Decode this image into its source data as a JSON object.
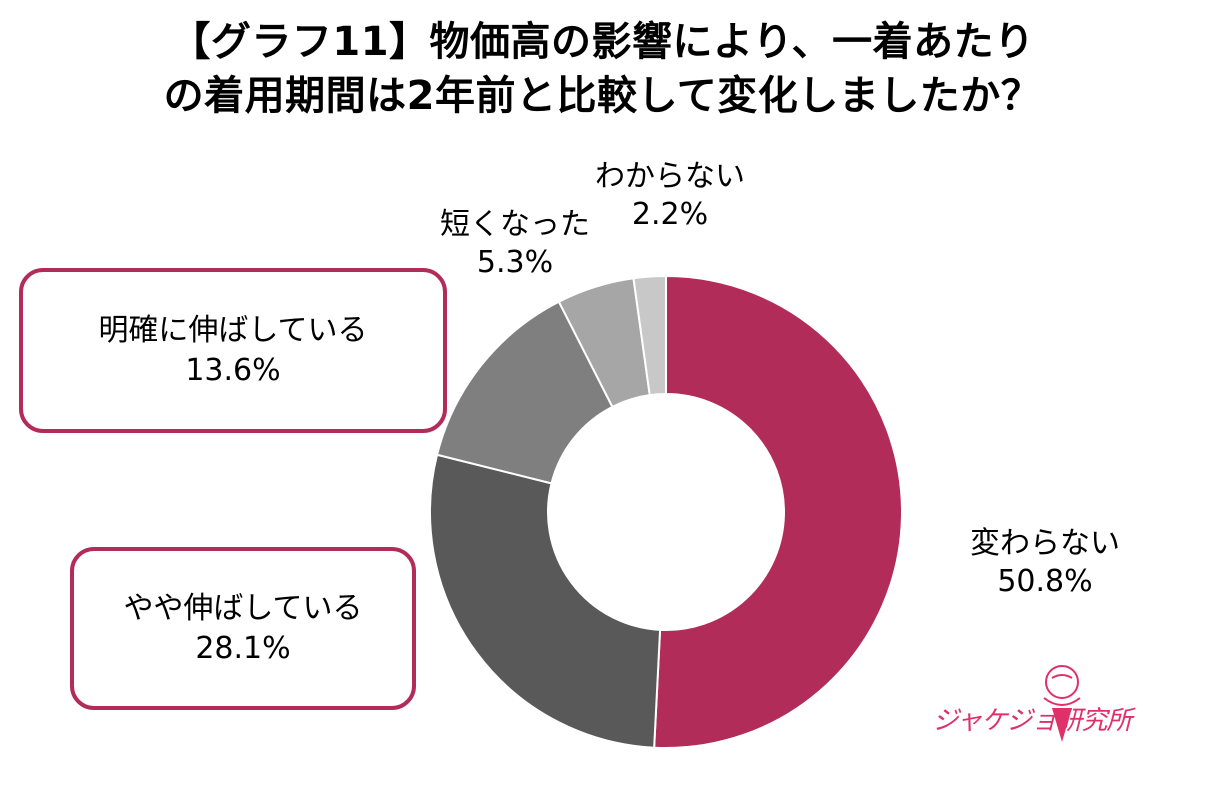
{
  "title": {
    "line1": "【グラフ11】物価高の影響により、一着あたり",
    "line2": "の着用期間は2年前と比較して変化しましたか？"
  },
  "chart_data": {
    "type": "pie",
    "style": "donut",
    "categories": [
      "変わらない",
      "やや伸ばしている",
      "明確に伸ばしている",
      "短くなった",
      "わからない"
    ],
    "values": [
      50.8,
      28.1,
      13.6,
      5.3,
      2.2
    ],
    "value_labels": [
      "50.8%",
      "28.1%",
      "13.6%",
      "5.3%",
      "2.2%"
    ],
    "colors": [
      "#b22c5a",
      "#595959",
      "#7f7f7f",
      "#a6a6a6",
      "#c8c8c8"
    ],
    "start": "12 o'clock",
    "direction": "clockwise"
  },
  "logo": {
    "text": "ジャケジョ研究所",
    "color": "#e0306a"
  },
  "callout_color": "#b22c5a"
}
